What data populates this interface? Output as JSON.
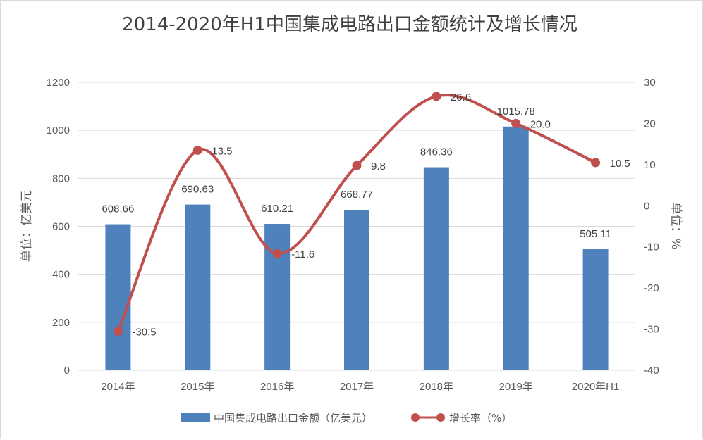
{
  "colors": {
    "bar": "#4f81bd",
    "line": "#c0504d",
    "grid": "#d9d9d9",
    "text": "#595959"
  },
  "chart_data": {
    "type": "bar+line",
    "title": "2014-2020年H1中国集成电路出口金额统计及增长情况",
    "categories": [
      "2014年",
      "2015年",
      "2016年",
      "2017年",
      "2018年",
      "2019年",
      "2020年H1"
    ],
    "series": [
      {
        "name": "中国集成电路出口金额（亿美元）",
        "type": "bar",
        "axis": "left",
        "values": [
          608.66,
          690.63,
          610.21,
          668.77,
          846.36,
          1015.78,
          505.11
        ],
        "labels": [
          "608.66",
          "690.63",
          "610.21",
          "668.77",
          "846.36",
          "1015.78",
          "505.11"
        ]
      },
      {
        "name": "增长率（%）",
        "type": "line",
        "axis": "right",
        "smooth": true,
        "values": [
          -30.5,
          13.5,
          -11.6,
          9.8,
          26.6,
          20.0,
          10.5
        ],
        "labels": [
          "-30.5",
          "13.5",
          "-11.6",
          "9.8",
          "26.6",
          "20.0",
          "10.5"
        ]
      }
    ],
    "ylabel_left": "单位：亿美元",
    "ylabel_right": "单位：%",
    "ylim_left": [
      0,
      1200
    ],
    "yticks_left": [
      "0",
      "200",
      "400",
      "600",
      "800",
      "1000",
      "1200"
    ],
    "ylim_right": [
      -40,
      30
    ],
    "yticks_right": [
      "-40",
      "-30",
      "-20",
      "-10",
      "0",
      "10",
      "20",
      "30"
    ],
    "legend_position": "bottom",
    "grid": true
  }
}
